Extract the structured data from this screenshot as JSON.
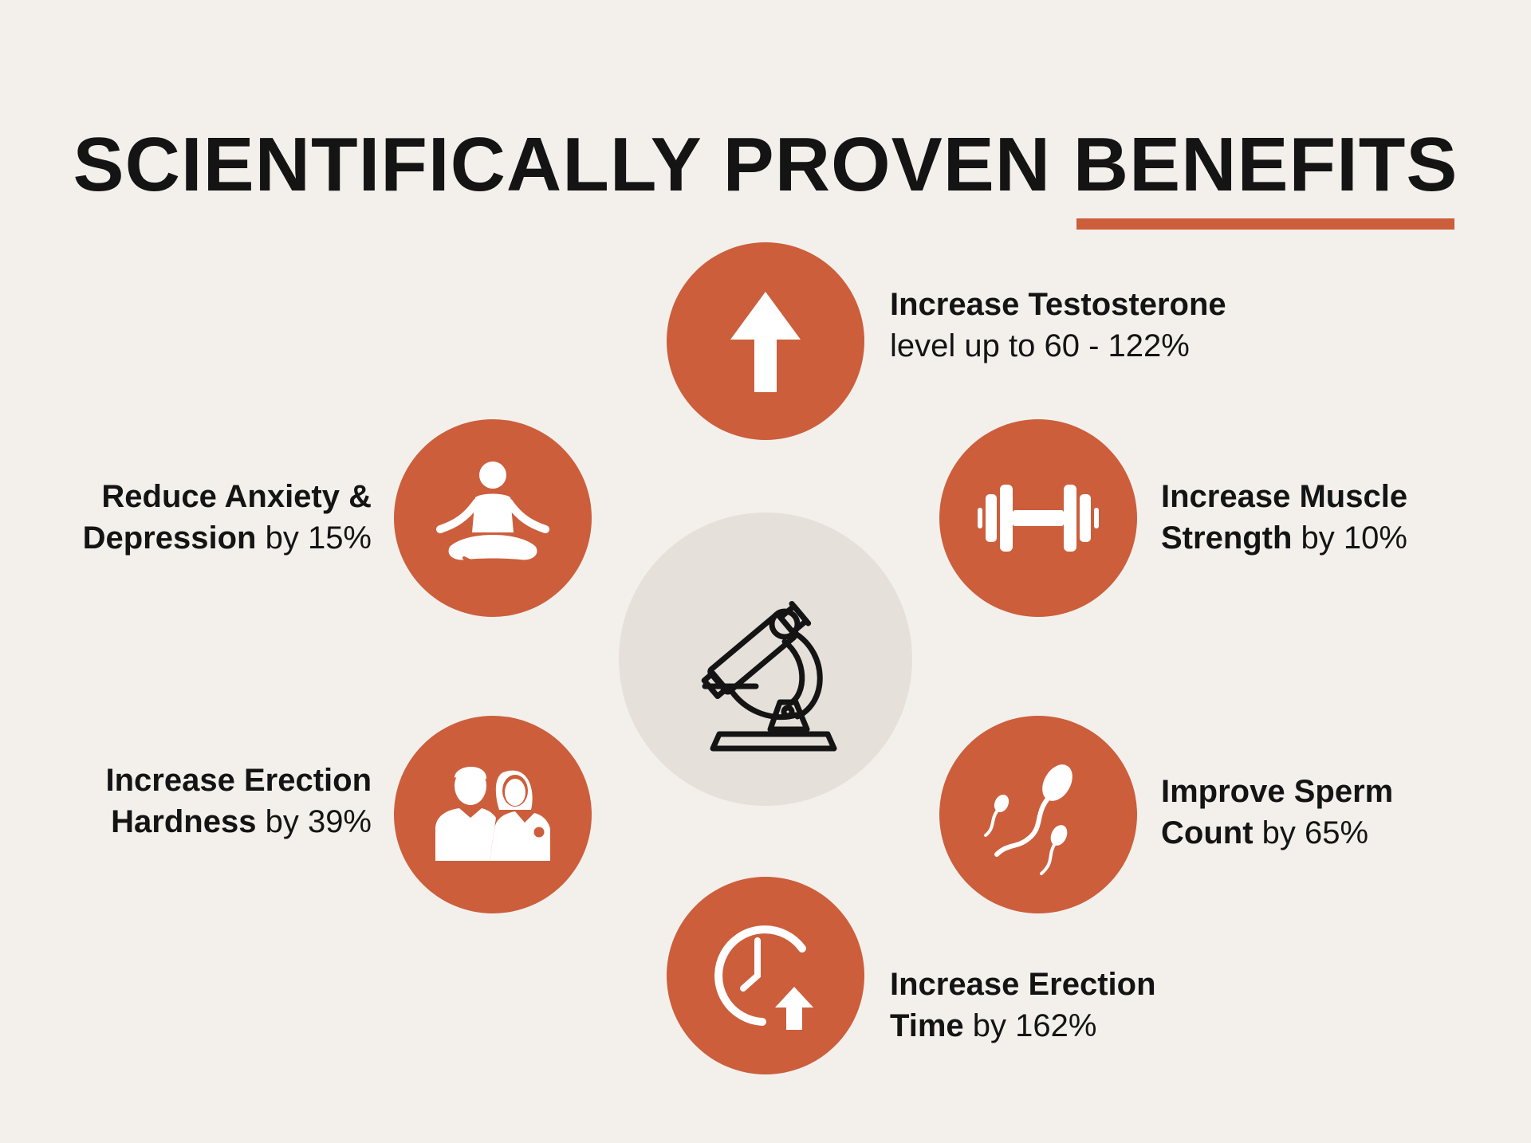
{
  "title": {
    "main": "SCIENTIFICALLY PROVEN ",
    "accent": "BENEFITS"
  },
  "colors": {
    "accent": "#cc5e3c",
    "background": "#f3f0ec",
    "center_circle": "#e5e0da",
    "text": "#141414"
  },
  "center": {
    "icon": "microscope-icon"
  },
  "benefits": [
    {
      "icon": "arrow-up-icon",
      "line1_bold": "Increase Testosterone",
      "line2_regular": "level up to 60 - 122%"
    },
    {
      "icon": "dumbbell-icon",
      "line1_bold": "Increase Muscle",
      "line2_bold": "Strength",
      "line2_regular": " by 10%"
    },
    {
      "icon": "sperm-icon",
      "line1_bold": "Improve Sperm",
      "line2_bold": "Count",
      "line2_regular": " by 65%"
    },
    {
      "icon": "clock-arrow-up-icon",
      "line1_bold": "Increase Erection",
      "line2_bold": "Time",
      "line2_regular": " by 162%"
    },
    {
      "icon": "couple-icon",
      "line1_bold": "Increase Erection",
      "line2_bold": "Hardness",
      "line2_regular": " by 39%"
    },
    {
      "icon": "meditation-icon",
      "line1_bold": "Reduce Anxiety &",
      "line2_bold": "Depression",
      "line2_regular": " by 15%"
    }
  ]
}
